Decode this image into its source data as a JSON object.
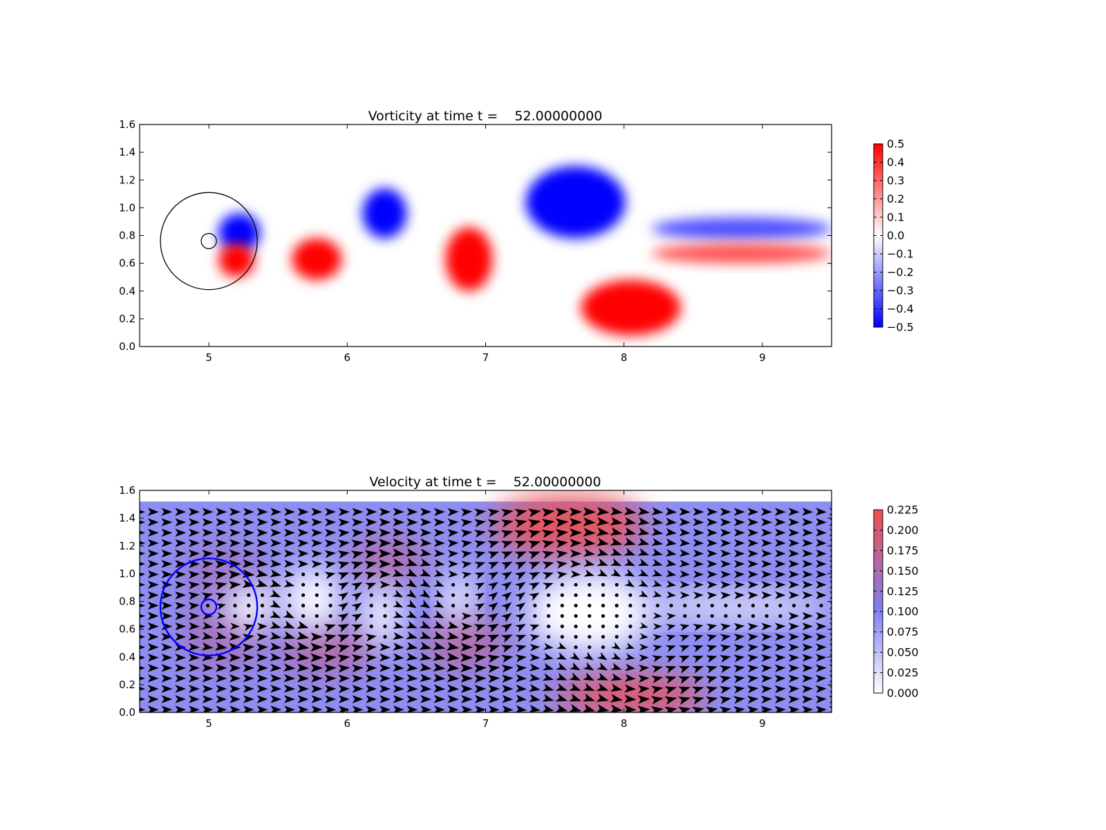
{
  "chart_data": [
    {
      "type": "heatmap",
      "field": "vorticity",
      "title": "Vorticity at time t =    52.00000000",
      "xlabel": "",
      "ylabel": "",
      "xlim": [
        4.5,
        9.5
      ],
      "ylim": [
        0.0,
        1.6
      ],
      "xticks": [
        "5",
        "6",
        "7",
        "8",
        "9"
      ],
      "yticks": [
        "0.0",
        "0.2",
        "0.4",
        "0.6",
        "0.8",
        "1.0",
        "1.2",
        "1.4",
        "1.6"
      ],
      "colormap": {
        "low": "#0000ff",
        "mid": "#ffffff",
        "high": "#ff0000"
      },
      "colorbar": {
        "range": [
          -0.5,
          0.5
        ],
        "ticks": [
          "0.5",
          "0.4",
          "0.3",
          "0.2",
          "0.1",
          "0.0",
          "−0.1",
          "−0.2",
          "−0.3",
          "−0.4",
          "−0.5"
        ]
      },
      "circles": [
        {
          "cx": 5.0,
          "cy": 0.76,
          "r": 0.35,
          "color": "#000000"
        },
        {
          "cx": 5.0,
          "cy": 0.76,
          "r": 0.055,
          "color": "#000000"
        }
      ],
      "vortices": [
        {
          "cx": 5.22,
          "cy": 0.82,
          "rx": 0.15,
          "ry": 0.14,
          "value": -0.5
        },
        {
          "cx": 5.2,
          "cy": 0.62,
          "rx": 0.13,
          "ry": 0.12,
          "value": 0.5
        },
        {
          "cx": 5.78,
          "cy": 0.63,
          "rx": 0.18,
          "ry": 0.15,
          "value": 0.5
        },
        {
          "cx": 6.27,
          "cy": 0.96,
          "rx": 0.16,
          "ry": 0.18,
          "value": -0.5
        },
        {
          "cx": 6.88,
          "cy": 0.63,
          "rx": 0.17,
          "ry": 0.23,
          "value": 0.5
        },
        {
          "cx": 7.65,
          "cy": 1.04,
          "rx": 0.36,
          "ry": 0.26,
          "value": -0.5
        },
        {
          "cx": 8.05,
          "cy": 0.28,
          "rx": 0.36,
          "ry": 0.2,
          "value": 0.5
        },
        {
          "cx": 8.85,
          "cy": 0.85,
          "rx": 0.65,
          "ry": 0.08,
          "value": -0.35
        },
        {
          "cx": 8.85,
          "cy": 0.67,
          "rx": 0.65,
          "ry": 0.07,
          "value": 0.35
        }
      ]
    },
    {
      "type": "heatmap",
      "field": "velocity",
      "title": "Velocity at time t =    52.00000000",
      "xlabel": "",
      "ylabel": "",
      "xlim": [
        4.5,
        9.5
      ],
      "ylim": [
        0.0,
        1.6
      ],
      "xticks": [
        "5",
        "6",
        "7",
        "8",
        "9"
      ],
      "yticks": [
        "0.0",
        "0.2",
        "0.4",
        "0.6",
        "0.8",
        "1.0",
        "1.2",
        "1.4",
        "1.6"
      ],
      "background_magnitude": 0.1,
      "colormap": {
        "low": "#ffffff",
        "mid": "#8080f0",
        "high": "#f05050"
      },
      "colorbar": {
        "range": [
          0.0,
          0.225
        ],
        "ticks": [
          "0.225",
          "0.200",
          "0.175",
          "0.150",
          "0.125",
          "0.100",
          "0.075",
          "0.050",
          "0.025",
          "0.000"
        ]
      },
      "circles": [
        {
          "cx": 5.0,
          "cy": 0.76,
          "r": 0.35,
          "color": "#0000ff"
        },
        {
          "cx": 5.0,
          "cy": 0.76,
          "r": 0.055,
          "color": "#0000ff"
        }
      ],
      "fast_regions": [
        {
          "cx": 7.6,
          "cy": 1.35,
          "rx": 0.55,
          "ry": 0.22,
          "value": 0.215
        },
        {
          "cx": 8.05,
          "cy": 0.12,
          "rx": 0.55,
          "ry": 0.14,
          "value": 0.215
        },
        {
          "cx": 6.3,
          "cy": 1.1,
          "rx": 0.28,
          "ry": 0.16,
          "value": 0.16
        },
        {
          "cx": 5.85,
          "cy": 0.45,
          "rx": 0.35,
          "ry": 0.18,
          "value": 0.16
        },
        {
          "cx": 6.85,
          "cy": 0.5,
          "rx": 0.3,
          "ry": 0.2,
          "value": 0.16
        },
        {
          "cx": 5.1,
          "cy": 0.55,
          "rx": 0.3,
          "ry": 0.25,
          "value": 0.145
        },
        {
          "cx": 5.1,
          "cy": 1.0,
          "rx": 0.3,
          "ry": 0.2,
          "value": 0.14
        }
      ],
      "slow_regions": [
        {
          "cx": 5.3,
          "cy": 0.76,
          "rx": 0.18,
          "ry": 0.15,
          "value": 0.0
        },
        {
          "cx": 5.75,
          "cy": 0.82,
          "rx": 0.2,
          "ry": 0.22,
          "value": 0.0
        },
        {
          "cx": 6.25,
          "cy": 0.7,
          "rx": 0.12,
          "ry": 0.22,
          "value": 0.0
        },
        {
          "cx": 6.8,
          "cy": 0.82,
          "rx": 0.1,
          "ry": 0.18,
          "value": 0.0
        },
        {
          "cx": 7.75,
          "cy": 0.72,
          "rx": 0.45,
          "ry": 0.28,
          "value": 0.0
        },
        {
          "cx": 8.8,
          "cy": 0.76,
          "rx": 0.7,
          "ry": 0.09,
          "value": 0.02
        }
      ]
    }
  ]
}
